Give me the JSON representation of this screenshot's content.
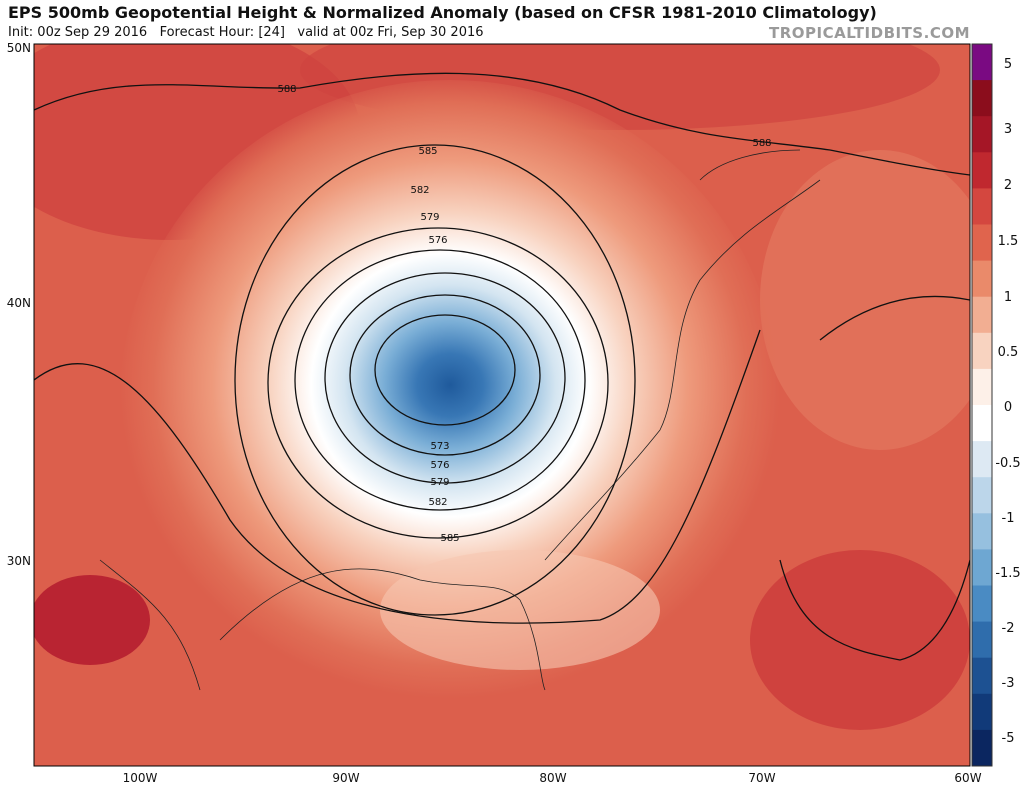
{
  "header": {
    "title": "EPS 500mb Geopotential Height & Normalized Anomaly (based on CFSR 1981-2010 Climatology)",
    "subtitle": "Init: 00z Sep 29 2016   Forecast Hour: [24]   valid at 00z Fri, Sep 30 2016",
    "watermark": "TROPICALTIDBITS.COM"
  },
  "map": {
    "lat_labels": [
      "50N",
      "40N",
      "30N"
    ],
    "lon_labels": [
      "100W",
      "90W",
      "80W",
      "70W",
      "60W"
    ],
    "contour_labels": [
      "588",
      "588",
      "585",
      "582",
      "579",
      "576",
      "573",
      "576",
      "579",
      "582",
      "585"
    ]
  },
  "colorbar": {
    "labels": [
      5,
      3,
      2,
      1.5,
      1,
      0.5,
      0,
      -0.5,
      -1,
      -1.5,
      -2,
      -3,
      -5
    ]
  }
}
